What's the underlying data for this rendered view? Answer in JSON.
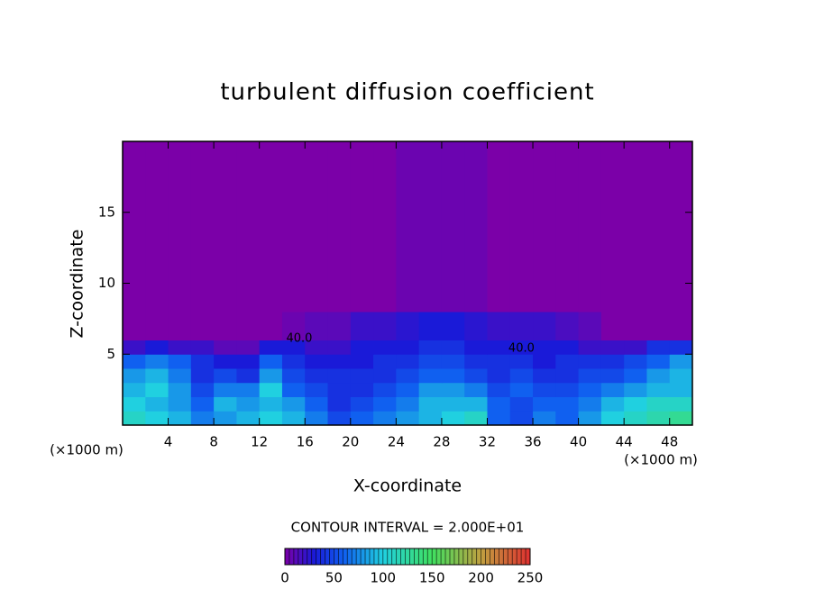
{
  "chart_data": {
    "type": "heatmap",
    "title": "turbulent diffusion coefficient",
    "x_label": "X-coordinate",
    "y_label": "Z-coordinate",
    "x_unit": "(×1000 m)",
    "y_unit": "(×1000 m)",
    "xlim": [
      0,
      50
    ],
    "ylim": [
      0,
      20
    ],
    "xticks": [
      4,
      8,
      12,
      16,
      20,
      24,
      28,
      32,
      36,
      40,
      44,
      48
    ],
    "yticks": [
      5,
      10,
      15
    ],
    "xbins": [
      0,
      2,
      4,
      6,
      8,
      10,
      12,
      14,
      16,
      18,
      20,
      22,
      24,
      26,
      28,
      30,
      32,
      34,
      36,
      38,
      40,
      42,
      44,
      46,
      48,
      50
    ],
    "zbins": [
      0,
      1,
      2,
      3,
      4,
      5,
      6,
      8,
      20
    ],
    "values": [
      [
        110,
        100,
        90,
        70,
        80,
        90,
        100,
        90,
        70,
        50,
        60,
        70,
        80,
        90,
        100,
        110,
        60,
        50,
        70,
        60,
        80,
        100,
        110,
        120,
        130
      ],
      [
        100,
        90,
        80,
        60,
        90,
        80,
        90,
        80,
        60,
        40,
        50,
        60,
        70,
        90,
        90,
        90,
        60,
        50,
        60,
        60,
        70,
        90,
        100,
        110,
        110
      ],
      [
        90,
        100,
        80,
        50,
        70,
        70,
        100,
        60,
        50,
        40,
        40,
        50,
        60,
        80,
        80,
        70,
        50,
        60,
        50,
        50,
        60,
        70,
        80,
        90,
        90
      ],
      [
        80,
        90,
        70,
        40,
        50,
        40,
        80,
        50,
        40,
        40,
        40,
        40,
        50,
        60,
        60,
        50,
        40,
        50,
        40,
        40,
        50,
        50,
        60,
        80,
        90
      ],
      [
        60,
        70,
        60,
        40,
        30,
        30,
        60,
        40,
        30,
        30,
        30,
        40,
        40,
        50,
        50,
        40,
        40,
        40,
        30,
        40,
        40,
        40,
        50,
        60,
        80
      ],
      [
        20,
        30,
        20,
        20,
        10,
        10,
        30,
        30,
        20,
        20,
        30,
        30,
        30,
        40,
        40,
        30,
        30,
        30,
        30,
        30,
        20,
        20,
        20,
        40,
        40
      ],
      [
        0,
        0,
        0,
        0,
        0,
        0,
        0,
        5,
        10,
        10,
        20,
        20,
        25,
        30,
        30,
        25,
        20,
        20,
        20,
        15,
        10,
        0,
        0,
        0,
        0
      ],
      [
        0,
        0,
        0,
        0,
        0,
        0,
        0,
        0,
        0,
        0,
        0,
        0,
        5,
        5,
        5,
        5,
        0,
        0,
        0,
        0,
        0,
        0,
        0,
        0,
        0
      ]
    ],
    "annotations": [
      {
        "text": "40.0",
        "x": 15.5,
        "z": 6.1
      },
      {
        "text": "40.0",
        "x": 35,
        "z": 5.4
      }
    ],
    "contour_interval_text": "CONTOUR INTERVAL = 2.000E+01",
    "colorbar_ticks": [
      0,
      50,
      100,
      150,
      200,
      250
    ],
    "colormap": [
      {
        "value": 0,
        "color": "#7b00a8"
      },
      {
        "value": 30,
        "color": "#1a1ad8"
      },
      {
        "value": 60,
        "color": "#1060f0"
      },
      {
        "value": 100,
        "color": "#20d0e0"
      },
      {
        "value": 150,
        "color": "#40e060"
      },
      {
        "value": 200,
        "color": "#c0a040"
      },
      {
        "value": 250,
        "color": "#e03030"
      }
    ]
  }
}
